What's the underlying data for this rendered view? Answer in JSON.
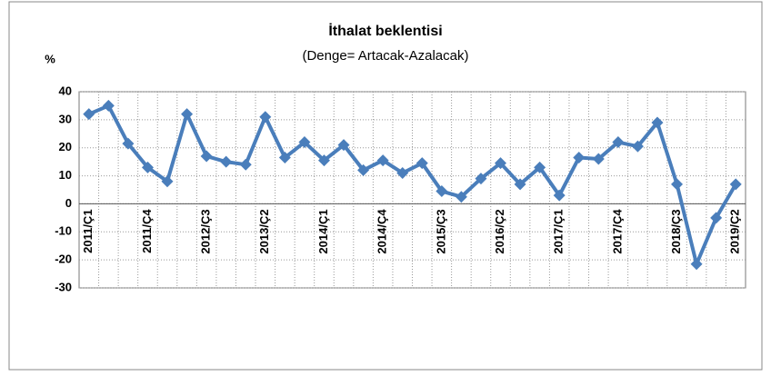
{
  "chart_data": {
    "type": "line",
    "title": "İthalat beklentisi",
    "subtitle": "(Denge= Artacak-Azalacak)",
    "y_label": "%",
    "categories": [
      "2011/Ç1",
      null,
      null,
      "2011/Ç4",
      null,
      null,
      "2012/Ç3",
      null,
      null,
      "2013/Ç2",
      null,
      null,
      "2014/Ç1",
      null,
      null,
      "2014/Ç4",
      null,
      null,
      "2015/Ç3",
      null,
      null,
      "2016/Ç2",
      null,
      null,
      "2017/Ç1",
      null,
      null,
      "2017/Ç4",
      null,
      null,
      "2018/Ç3",
      null,
      null,
      "2019/Ç2"
    ],
    "series": [
      {
        "name": "İthalat beklentisi",
        "color": "#4a7ebb",
        "values": [
          32,
          35,
          21.5,
          13,
          8,
          32,
          17,
          15,
          14,
          31,
          16.5,
          22,
          15.5,
          21,
          12,
          15.5,
          11,
          14.5,
          4.5,
          2.5,
          9,
          14.5,
          7,
          13,
          3,
          16.5,
          16,
          22,
          20.5,
          29,
          7,
          -21.5,
          -5,
          7
        ]
      }
    ],
    "ylim": [
      -30,
      40
    ],
    "yticks": [
      -30,
      -20,
      -10,
      0,
      10,
      20,
      30,
      40
    ],
    "grid": true
  }
}
